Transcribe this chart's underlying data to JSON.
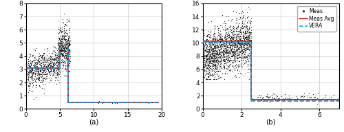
{
  "subplot_a": {
    "xlabel": "(a)",
    "xlim": [
      0.0,
      20.0
    ],
    "ylim": [
      0.0,
      8.0
    ],
    "xticks": [
      0.0,
      5.0,
      10.0,
      15.0,
      20.0
    ],
    "yticks": [
      0.0,
      1.0,
      2.0,
      3.0,
      4.0,
      5.0,
      6.0,
      7.0,
      8.0
    ],
    "phase1_xstart": 0.2,
    "phase1_xend": 5.0,
    "phase1_avg": 3.1,
    "phase2_xstart": 5.0,
    "phase2_xend": 6.2,
    "phase2_avg": 4.65,
    "post_xstart": 6.2,
    "post_xend": 19.5,
    "post_avg": 0.5,
    "vera_phase1": 3.1,
    "vera_phase2": 4.65,
    "vera_post": 0.5,
    "n_scatter_phase1": 700,
    "n_scatter_phase2": 500,
    "n_scatter_post": 25,
    "seed": 7
  },
  "subplot_b": {
    "xlabel": "(b)",
    "xlim": [
      0.0,
      7.0
    ],
    "ylim": [
      0.0,
      16.0
    ],
    "xticks": [
      0.0,
      2.0,
      4.0,
      6.0
    ],
    "yticks": [
      0.0,
      2.0,
      4.0,
      6.0,
      8.0,
      10.0,
      12.0,
      14.0,
      16.0
    ],
    "phase1_xstart": 0.02,
    "phase1_xend": 2.5,
    "phase1_avg": 10.3,
    "post_xstart": 2.5,
    "post_xend": 7.0,
    "post_avg": 1.35,
    "vera_phase1": 10.1,
    "vera_post": 1.2,
    "n_scatter_phase1": 1800,
    "n_scatter_post": 100,
    "seed": 13
  },
  "legend": {
    "meas_label": "Meas",
    "avg_label": "Meas Avg",
    "vera_label": "VERA",
    "scatter_color": "#222222",
    "avg_color": "#cc0000",
    "vera_color": "#00aaee",
    "scatter_size": 0.8,
    "avg_linewidth": 1.2,
    "vera_linewidth": 1.2
  },
  "figure": {
    "background_color": "#ffffff",
    "grid_color": "#c8c8c8",
    "tick_fontsize": 6.5,
    "label_fontsize": 7.5
  }
}
